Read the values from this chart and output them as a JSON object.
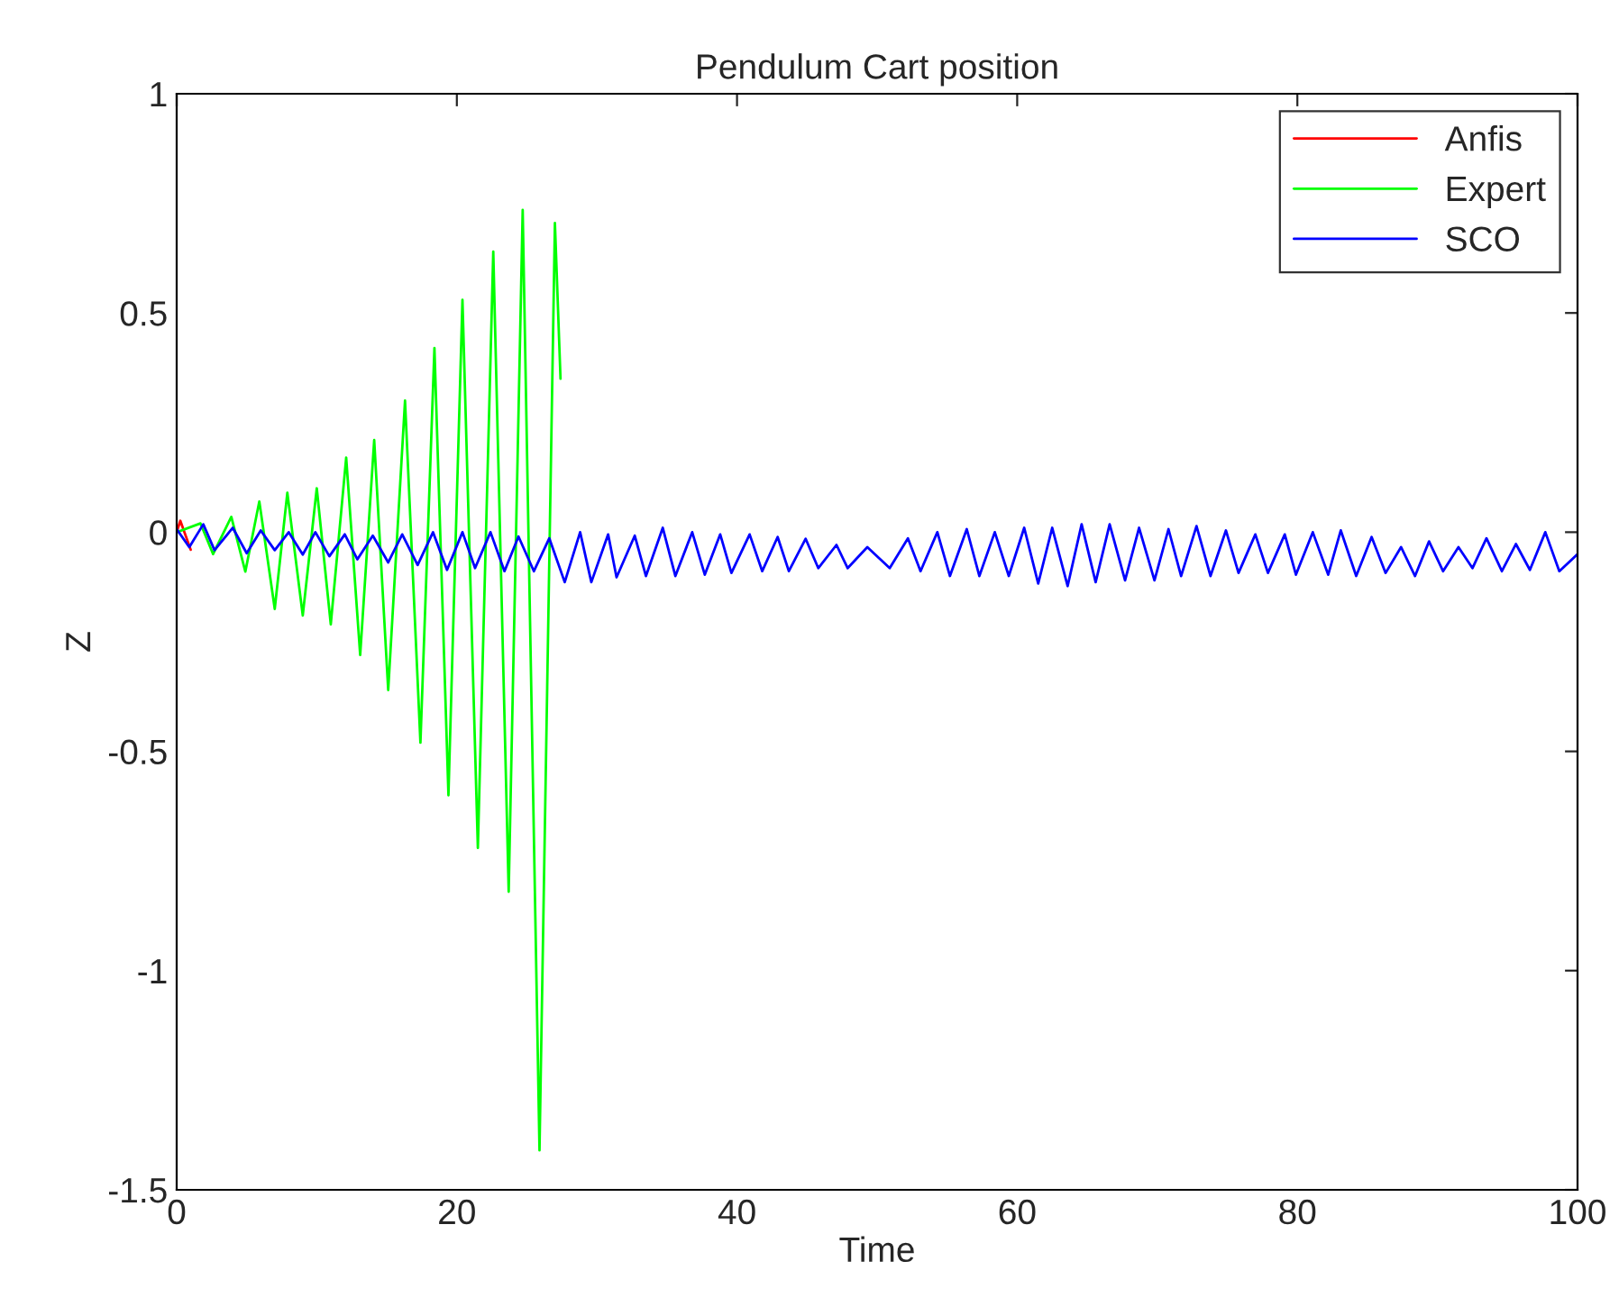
{
  "chart_data": {
    "type": "line",
    "title": "Pendulum Cart position",
    "xlabel": "Time",
    "ylabel": "Z",
    "xlim": [
      0,
      100
    ],
    "ylim": [
      -1.5,
      1
    ],
    "xticks": [
      0,
      20,
      40,
      60,
      80,
      100
    ],
    "yticks": [
      -1.5,
      -1,
      -0.5,
      0,
      0.5,
      1
    ],
    "grid": false,
    "legend": "top right",
    "marker": "none",
    "line_style": "solid",
    "series": [
      {
        "name": "Anfis",
        "color": "#ff0000",
        "x": [
          0,
          0.26,
          1.0
        ],
        "values": [
          0,
          0.026,
          -0.04
        ]
      },
      {
        "name": "Expert",
        "color": "#00ff00",
        "x": [
          0,
          1.7,
          2.6,
          3.9,
          4.9,
          5.9,
          7.0,
          7.9,
          9.0,
          10.0,
          11.0,
          12.1,
          13.1,
          14.1,
          15.1,
          16.3,
          17.4,
          18.4,
          19.4,
          20.4,
          21.5,
          22.6,
          23.7,
          24.7,
          25.9,
          27.0,
          27.4
        ],
        "values": [
          0,
          0.02,
          -0.05,
          0.035,
          -0.09,
          0.07,
          -0.175,
          0.09,
          -0.19,
          0.1,
          -0.21,
          0.17,
          -0.28,
          0.21,
          -0.36,
          0.3,
          -0.48,
          0.42,
          -0.6,
          0.53,
          -0.72,
          0.64,
          -0.82,
          0.735,
          -1.41,
          0.705,
          0.35
        ]
      },
      {
        "name": "SCO",
        "color": "#0000ff",
        "x": [
          0,
          0.9,
          1.9,
          2.7,
          4.0,
          5.0,
          6.0,
          7.0,
          8.0,
          9.0,
          9.9,
          10.9,
          12.0,
          12.9,
          14.0,
          15.1,
          16.1,
          17.2,
          18.3,
          19.3,
          20.4,
          21.3,
          22.4,
          23.4,
          24.4,
          25.5,
          26.6,
          27.7,
          28.8,
          29.6,
          30.8,
          31.4,
          32.7,
          33.5,
          34.7,
          35.6,
          36.8,
          37.7,
          38.8,
          39.6,
          40.9,
          41.8,
          42.9,
          43.7,
          44.9,
          45.8,
          47.1,
          47.9,
          49.3,
          50.9,
          52.2,
          53.1,
          54.3,
          55.2,
          56.4,
          57.3,
          58.4,
          59.4,
          60.5,
          61.5,
          62.5,
          63.6,
          64.6,
          65.6,
          66.6,
          67.7,
          68.7,
          69.8,
          70.8,
          71.7,
          72.8,
          73.8,
          74.9,
          75.8,
          77.0,
          77.9,
          79.1,
          79.9,
          81.1,
          82.2,
          83.1,
          84.2,
          85.3,
          86.3,
          87.4,
          88.4,
          89.4,
          90.4,
          91.5,
          92.5,
          93.5,
          94.6,
          95.6,
          96.6,
          97.7,
          98.7,
          100
        ],
        "values": [
          0.007,
          -0.034,
          0.018,
          -0.041,
          0.01,
          -0.048,
          0.004,
          -0.041,
          0.0,
          -0.051,
          0.0,
          -0.055,
          -0.005,
          -0.062,
          -0.008,
          -0.069,
          -0.005,
          -0.075,
          0.0,
          -0.086,
          0.0,
          -0.082,
          0.0,
          -0.089,
          -0.01,
          -0.089,
          -0.014,
          -0.114,
          0.0,
          -0.114,
          -0.005,
          -0.103,
          -0.008,
          -0.1,
          0.01,
          -0.1,
          0.0,
          -0.097,
          -0.005,
          -0.093,
          -0.005,
          -0.089,
          -0.011,
          -0.089,
          -0.015,
          -0.082,
          -0.029,
          -0.082,
          -0.034,
          -0.082,
          -0.014,
          -0.089,
          0.0,
          -0.1,
          0.007,
          -0.1,
          0.0,
          -0.1,
          0.01,
          -0.117,
          0.01,
          -0.123,
          0.018,
          -0.114,
          0.018,
          -0.11,
          0.01,
          -0.11,
          0.007,
          -0.1,
          0.014,
          -0.1,
          0.004,
          -0.093,
          -0.005,
          -0.093,
          -0.005,
          -0.097,
          0.0,
          -0.097,
          0.004,
          -0.1,
          -0.011,
          -0.093,
          -0.034,
          -0.1,
          -0.021,
          -0.089,
          -0.034,
          -0.082,
          -0.014,
          -0.089,
          -0.027,
          -0.086,
          0.0,
          -0.089,
          -0.05
        ]
      }
    ]
  }
}
